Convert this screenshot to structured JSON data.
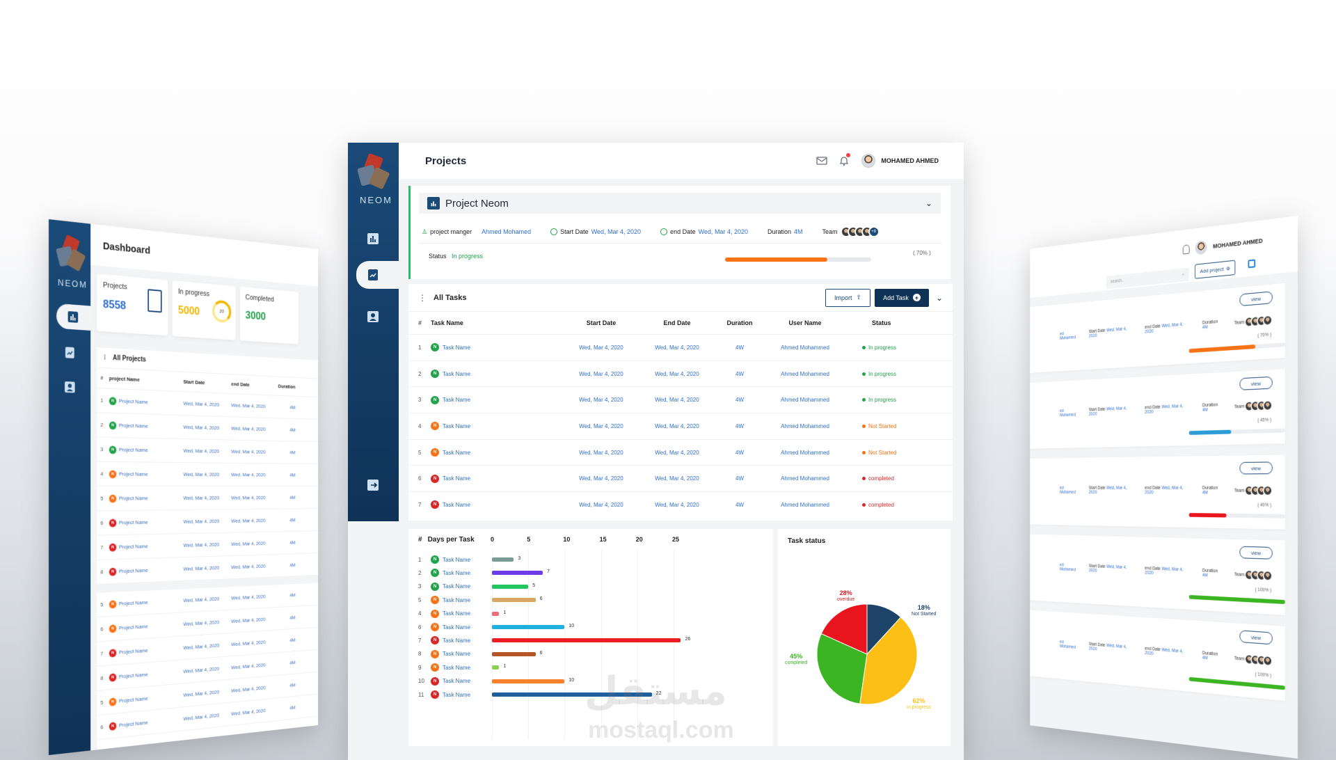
{
  "left": {
    "logo": "NEOM",
    "title": "Dashboard",
    "stats": [
      {
        "label": "Projects",
        "value": "8558",
        "color": "#2f6fcf"
      },
      {
        "label": "In progress",
        "value": "5000",
        "color": "#f5b800"
      },
      {
        "label": "Completed",
        "value": "3000",
        "color": "#22a34a"
      }
    ],
    "gauge_value": "20",
    "table_title": "All Projects",
    "headers": [
      "#",
      "project Name",
      "Start Date",
      "end Date",
      "Duration"
    ],
    "rows": [
      {
        "n": "1",
        "b": "N",
        "c": "#22a34a",
        "name": "Project Name",
        "sd": "Wed, Mar 4, 2020",
        "ed": "Wed, Mar 4, 2020",
        "du": "4M"
      },
      {
        "n": "2",
        "b": "N",
        "c": "#22a34a",
        "name": "Project Name",
        "sd": "Wed, Mar 4, 2020",
        "ed": "Wed, Mar 4, 2020",
        "du": "4M"
      },
      {
        "n": "3",
        "b": "N",
        "c": "#22a34a",
        "name": "Project Name",
        "sd": "Wed, Mar 4, 2020",
        "ed": "Wed, Mar 4, 2020",
        "du": "4M"
      },
      {
        "n": "4",
        "b": "N",
        "c": "#f97316",
        "name": "Project Name",
        "sd": "Wed, Mar 4, 2020",
        "ed": "Wed, Mar 4, 2020",
        "du": "4M"
      },
      {
        "n": "5",
        "b": "N",
        "c": "#f97316",
        "name": "Project Name",
        "sd": "Wed, Mar 4, 2020",
        "ed": "Wed, Mar 4, 2020",
        "du": "4M"
      },
      {
        "n": "6",
        "b": "N",
        "c": "#dc2626",
        "name": "Project Name",
        "sd": "Wed, Mar 4, 2020",
        "ed": "Wed, Mar 4, 2020",
        "du": "4M"
      },
      {
        "n": "7",
        "b": "N",
        "c": "#dc2626",
        "name": "Project Name",
        "sd": "Wed, Mar 4, 2020",
        "ed": "Wed, Mar 4, 2020",
        "du": "4M"
      },
      {
        "n": "8",
        "b": "N",
        "c": "#dc2626",
        "name": "Project Name",
        "sd": "Wed, Mar 4, 2020",
        "ed": "Wed, Mar 4, 2020",
        "du": "4M"
      },
      {
        "n": "5",
        "b": "N",
        "c": "#f97316",
        "name": "Project Name",
        "sd": "Wed, Mar 4, 2020",
        "ed": "Wed, Mar 4, 2020",
        "du": "4M"
      },
      {
        "n": "6",
        "b": "N",
        "c": "#f97316",
        "name": "Project Name",
        "sd": "Wed, Mar 4, 2020",
        "ed": "Wed, Mar 4, 2020",
        "du": "4M"
      },
      {
        "n": "7",
        "b": "N",
        "c": "#dc2626",
        "name": "Project Name",
        "sd": "Wed, Mar 4, 2020",
        "ed": "Wed, Mar 4, 2020",
        "du": "4M"
      },
      {
        "n": "8",
        "b": "N",
        "c": "#dc2626",
        "name": "Project Name",
        "sd": "Wed, Mar 4, 2020",
        "ed": "Wed, Mar 4, 2020",
        "du": "4M"
      },
      {
        "n": "5",
        "b": "N",
        "c": "#f97316",
        "name": "Project Name",
        "sd": "Wed, Mar 4, 2020",
        "ed": "Wed, Mar 4, 2020",
        "du": "4M"
      },
      {
        "n": "6",
        "b": "N",
        "c": "#dc2626",
        "name": "Project Name",
        "sd": "Wed, Mar 4, 2020",
        "ed": "Wed, Mar 4, 2020",
        "du": "4M"
      }
    ]
  },
  "main": {
    "logo": "NEOM",
    "page_title": "Projects",
    "user_name": "MOHAMED AHMED",
    "project": {
      "name": "Project Neom",
      "manager_label": "project manger",
      "manager": "Ahmed Mohamed",
      "start_label": "Start Date",
      "start": "Wed, Mar 4, 2020",
      "end_label": "end Date",
      "end": "Wed, Mar 4, 2020",
      "duration_label": "Duration",
      "duration": "4M",
      "team_label": "Team",
      "team_more": "+8",
      "status_label": "Status",
      "status": "In progress",
      "progress": 0.7,
      "progress_text": "( 70% )"
    },
    "tasks": {
      "title": "All Tasks",
      "import_label": "Import",
      "add_label": "Add Task",
      "headers": {
        "n": "#",
        "name": "Task Name",
        "sd": "Start Date",
        "ed": "End Date",
        "du": "Duration",
        "un": "User Name",
        "st": "Status"
      },
      "rows": [
        {
          "n": "1",
          "b": "N",
          "c": "#22a34a",
          "name": "Task Name",
          "sd": "Wed, Mar 4, 2020",
          "ed": "Wed, Mar 4, 2020",
          "du": "4W",
          "un": "Ahmed Mohammed",
          "st": "In progress",
          "sc": "#22a34a"
        },
        {
          "n": "2",
          "b": "N",
          "c": "#22a34a",
          "name": "Task Name",
          "sd": "Wed, Mar 4, 2020",
          "ed": "Wed, Mar 4, 2020",
          "du": "4W",
          "un": "Ahmed Mohammed",
          "st": "In progress",
          "sc": "#22a34a"
        },
        {
          "n": "3",
          "b": "N",
          "c": "#22a34a",
          "name": "Task Name",
          "sd": "Wed, Mar 4, 2020",
          "ed": "Wed, Mar 4, 2020",
          "du": "4W",
          "un": "Ahmed Mohammed",
          "st": "In progress",
          "sc": "#22a34a"
        },
        {
          "n": "4",
          "b": "N",
          "c": "#f97316",
          "name": "Task Name",
          "sd": "Wed, Mar 4, 2020",
          "ed": "Wed, Mar 4, 2020",
          "du": "4W",
          "un": "Ahmed Mohammed",
          "st": "Not Started",
          "sc": "#f97316"
        },
        {
          "n": "5",
          "b": "N",
          "c": "#f97316",
          "name": "Task Name",
          "sd": "Wed, Mar 4, 2020",
          "ed": "Wed, Mar 4, 2020",
          "du": "4W",
          "un": "Ahmed Mohammed",
          "st": "Not Started",
          "sc": "#f97316"
        },
        {
          "n": "6",
          "b": "N",
          "c": "#dc2626",
          "name": "Task Name",
          "sd": "Wed, Mar 4, 2020",
          "ed": "Wed, Mar 4, 2020",
          "du": "4W",
          "un": "Ahmed Mohammed",
          "st": "completed",
          "sc": "#dc2626"
        },
        {
          "n": "7",
          "b": "N",
          "c": "#dc2626",
          "name": "Task Name",
          "sd": "Wed, Mar 4, 2020",
          "ed": "Wed, Mar 4, 2020",
          "du": "4W",
          "un": "Ahmed Mohammed",
          "st": "completed",
          "sc": "#dc2626"
        }
      ]
    },
    "days": {
      "title": "Days per Task",
      "hash": "#",
      "ticks": [
        "0",
        "5",
        "10",
        "15",
        "20",
        "25"
      ],
      "max": 27,
      "rows": [
        {
          "n": "1",
          "b": "N",
          "c": "#22a34a",
          "name": "Task Name",
          "v": 3,
          "bar": "#7a9a95"
        },
        {
          "n": "2",
          "b": "N",
          "c": "#22a34a",
          "name": "Task Name",
          "v": 7,
          "bar": "#6d3ce8"
        },
        {
          "n": "3",
          "b": "N",
          "c": "#22a34a",
          "name": "Task Name",
          "v": 5,
          "bar": "#22c55e"
        },
        {
          "n": "5",
          "b": "N",
          "c": "#f97316",
          "name": "Task Name",
          "v": 6,
          "bar": "#d9a860"
        },
        {
          "n": "4",
          "b": "N",
          "c": "#f97316",
          "name": "Task Name",
          "v": 1,
          "bar": "#f06b7a"
        },
        {
          "n": "6",
          "b": "N",
          "c": "#f97316",
          "name": "Task Name",
          "v": 10,
          "bar": "#1fb0e0"
        },
        {
          "n": "7",
          "b": "N",
          "c": "#dc2626",
          "name": "Task Name",
          "v": 26,
          "bar": "#ee1c25"
        },
        {
          "n": "8",
          "b": "N",
          "c": "#f97316",
          "name": "Task Name",
          "v": 6,
          "bar": "#b5552a"
        },
        {
          "n": "9",
          "b": "N",
          "c": "#f97316",
          "name": "Task Name",
          "v": 1,
          "bar": "#8fd14f"
        },
        {
          "n": "10",
          "b": "N",
          "c": "#dc2626",
          "name": "Task Name",
          "v": 10,
          "bar": "#f9802c"
        },
        {
          "n": "11",
          "b": "N",
          "c": "#dc2626",
          "name": "Task Name",
          "v": 22,
          "bar": "#1f5f9c"
        }
      ]
    },
    "task_status": {
      "title": "Task status",
      "slices": [
        {
          "label": "overdue",
          "pct": "28%",
          "value": 28,
          "color": "#e8141e"
        },
        {
          "label": "Not Started",
          "pct": "18%",
          "value": 18,
          "color": "#1e4468"
        },
        {
          "label": "In progress",
          "pct": "62%",
          "value": 62,
          "color": "#fbbf16"
        },
        {
          "label": "completed",
          "pct": "45%",
          "value": 45,
          "color": "#3cb523"
        }
      ]
    }
  },
  "right": {
    "user_name": "MOHAMED AHMED",
    "search_placeholder": "search..",
    "add_project": "Add project",
    "view_label": "view",
    "manager_fragment": "ed Mohamed",
    "start_label": "Start Date",
    "start": "Wed, Mar 4, 2020",
    "end_label": "end Date",
    "end": "Wed, Mar 4, 2020",
    "duration_label": "Duration",
    "duration": "4M",
    "team_label": "Team",
    "cards": [
      {
        "pct": "( 70% )",
        "progress": 0.7,
        "color": "#f97316"
      },
      {
        "pct": "( 45% )",
        "progress": 0.45,
        "color": "#2d9cd6"
      },
      {
        "pct": "( 40% )",
        "progress": 0.4,
        "color": "#e8141e"
      },
      {
        "pct": "( 100% )",
        "progress": 1.0,
        "color": "#3cb523"
      },
      {
        "pct": "( 100% )",
        "progress": 1.0,
        "color": "#3cb523"
      }
    ]
  },
  "watermark": {
    "arabic": "مستقل",
    "latin": "mostaql.com"
  }
}
